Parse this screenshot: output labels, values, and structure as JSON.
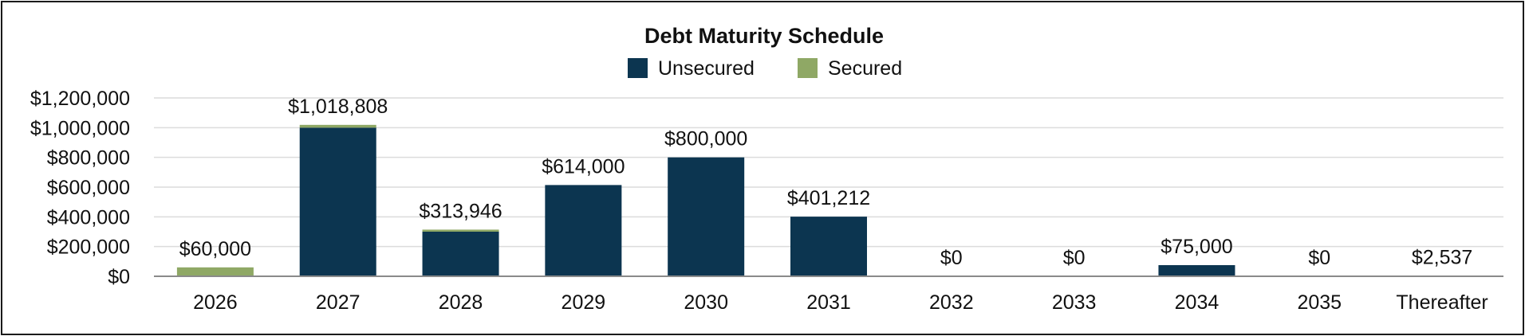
{
  "chart_data": {
    "type": "bar",
    "stacked": true,
    "title": "Debt Maturity Schedule",
    "categories": [
      "2026",
      "2027",
      "2028",
      "2029",
      "2030",
      "2031",
      "2032",
      "2033",
      "2034",
      "2035",
      "Thereafter"
    ],
    "series": [
      {
        "name": "Unsecured",
        "color": "#0c3550",
        "values": [
          0,
          1000000,
          300000,
          614000,
          800000,
          401212,
          0,
          0,
          75000,
          0,
          2537
        ]
      },
      {
        "name": "Secured",
        "color": "#8fa865",
        "values": [
          60000,
          18808,
          13946,
          0,
          0,
          0,
          0,
          0,
          0,
          0,
          0
        ]
      }
    ],
    "data_labels": [
      "$60,000",
      "$1,018,808",
      "$313,946",
      "$614,000",
      "$800,000",
      "$401,212",
      "$0",
      "$0",
      "$75,000",
      "$0",
      "$2,537"
    ],
    "yticks": [
      "$0",
      "$200,000",
      "$400,000",
      "$600,000",
      "$800,000",
      "$1,000,000",
      "$1,200,000"
    ],
    "ylim": [
      0,
      1200000
    ],
    "grid": true,
    "legend_position": "top-center",
    "xlabel": "",
    "ylabel": ""
  }
}
